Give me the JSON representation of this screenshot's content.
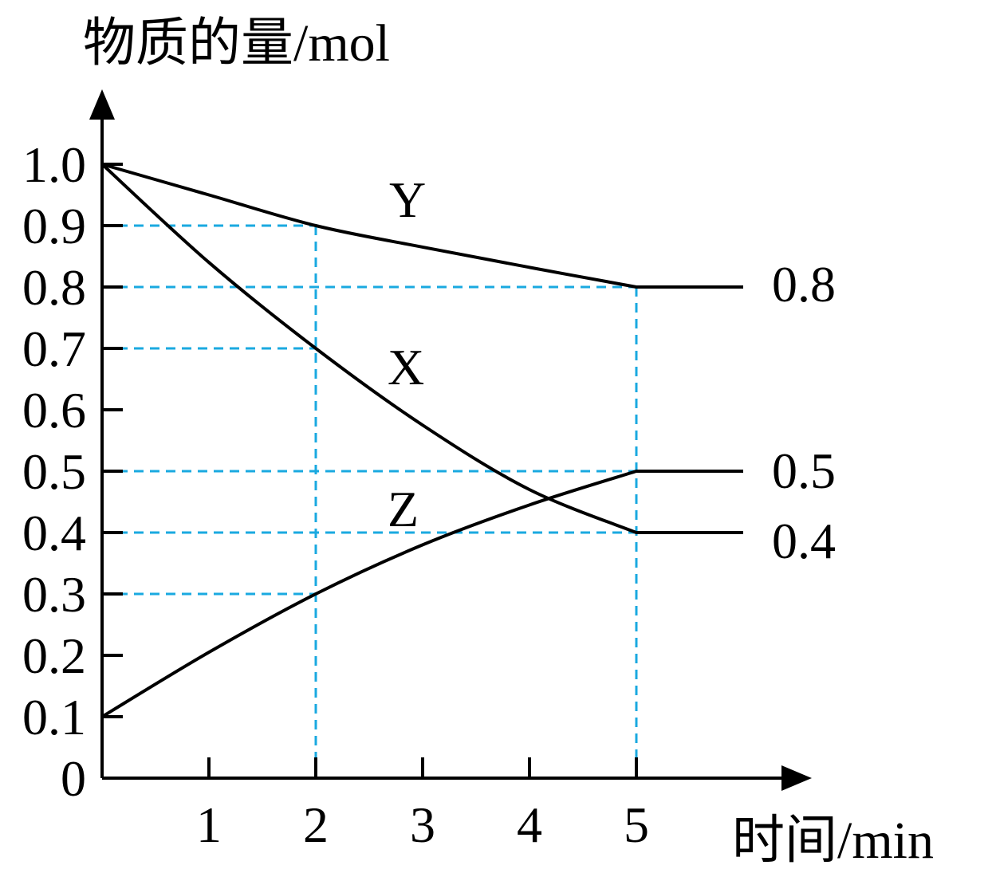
{
  "chart_data": {
    "type": "line",
    "ylabel": "物质的量/mol",
    "xlabel": "时间/min",
    "xlim": [
      0,
      6.3
    ],
    "ylim": [
      0,
      1.0
    ],
    "x_ticks": [
      1,
      2,
      3,
      4,
      5
    ],
    "x_tick_labels": [
      "1",
      "2",
      "3",
      "4",
      "5"
    ],
    "y_ticks": [
      0,
      0.1,
      0.2,
      0.3,
      0.4,
      0.5,
      0.6,
      0.7,
      0.8,
      0.9,
      1.0
    ],
    "y_tick_labels": [
      "0",
      "0.1",
      "0.2",
      "0.3",
      "0.4",
      "0.5",
      "0.6",
      "0.7",
      "0.8",
      "0.9",
      "1.0"
    ],
    "series": [
      {
        "name": "Y",
        "x": [
          0,
          1,
          2,
          3,
          4,
          5,
          6
        ],
        "y": [
          1.0,
          0.95,
          0.9,
          0.865,
          0.832,
          0.8,
          0.8
        ],
        "end_label": "0.8"
      },
      {
        "name": "X",
        "x": [
          0,
          1,
          2,
          3,
          4,
          5,
          6
        ],
        "y": [
          1.0,
          0.84,
          0.7,
          0.575,
          0.47,
          0.4,
          0.4
        ],
        "end_label": "0.4"
      },
      {
        "name": "Z",
        "x": [
          0,
          1,
          2,
          3,
          4,
          5,
          6
        ],
        "y": [
          0.1,
          0.205,
          0.3,
          0.38,
          0.445,
          0.5,
          0.5
        ],
        "end_label": "0.5"
      }
    ],
    "guides": {
      "color": "#1aa9e0",
      "horizontal": [
        {
          "y": 0.9,
          "x_to": 2
        },
        {
          "y": 0.8,
          "x_to": 5
        },
        {
          "y": 0.7,
          "x_to": 2
        },
        {
          "y": 0.5,
          "x_to": 5
        },
        {
          "y": 0.4,
          "x_to": 5
        },
        {
          "y": 0.3,
          "x_to": 2
        }
      ],
      "vertical": [
        {
          "x": 2,
          "y_to": 0.9
        },
        {
          "x": 5,
          "y_to": 0.8
        }
      ]
    },
    "grid": false,
    "legend": "none"
  }
}
